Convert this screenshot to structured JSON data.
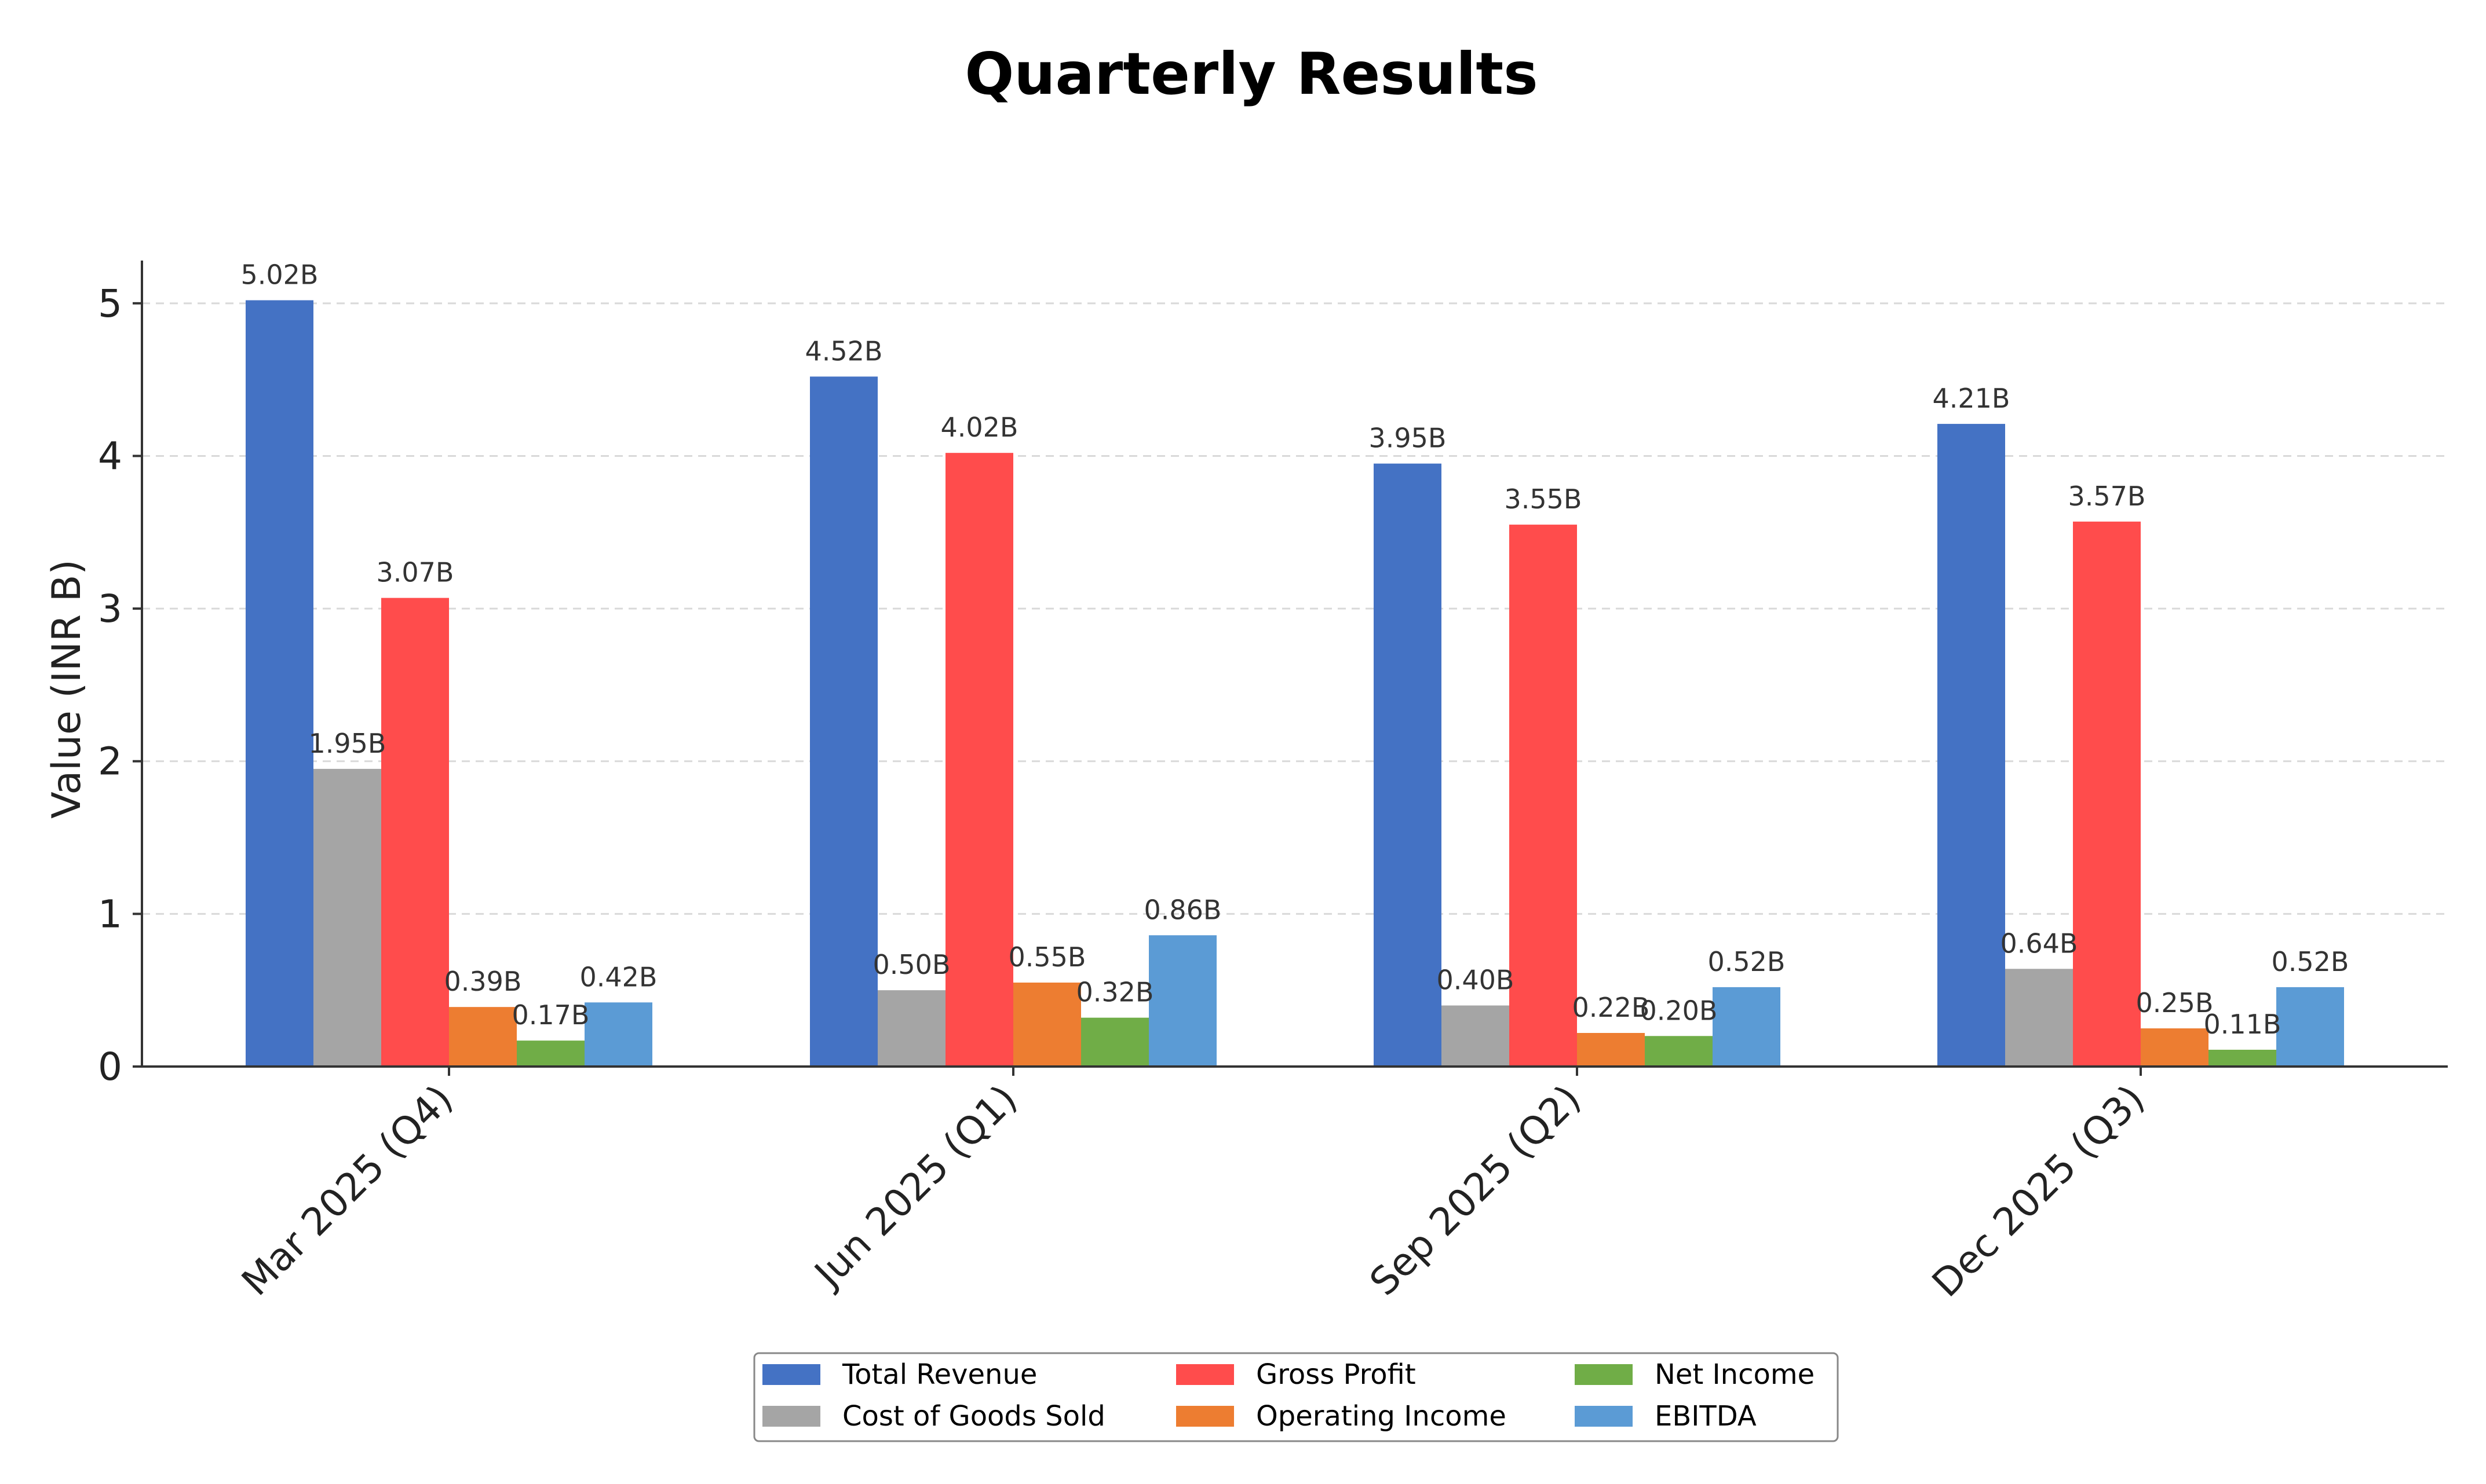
{
  "chart_data": {
    "type": "bar",
    "title": "Quarterly Results",
    "xlabel": "",
    "ylabel": "Value (INR B)",
    "ylim": [
      0,
      5.28
    ],
    "yticks": [
      0,
      1,
      2,
      3,
      4,
      5
    ],
    "grid": true,
    "legend_placement": "bottom-center",
    "categories": [
      "Mar 2025 (Q4)",
      "Jun 2025 (Q1)",
      "Sep 2025 (Q2)",
      "Dec 2025 (Q3)"
    ],
    "series": [
      {
        "name": "Total Revenue",
        "color": "#4472c4",
        "values": [
          5.02,
          4.52,
          3.95,
          4.21
        ],
        "labels": [
          "5.02B",
          "4.52B",
          "3.95B",
          "4.21B"
        ]
      },
      {
        "name": "Cost of Goods Sold",
        "color": "#a5a5a5",
        "values": [
          1.95,
          0.5,
          0.4,
          0.64
        ],
        "labels": [
          "1.95B",
          "0.50B",
          "0.40B",
          "0.64B"
        ]
      },
      {
        "name": "Gross Profit",
        "color": "#ff4c4c",
        "values": [
          3.07,
          4.02,
          3.55,
          3.57
        ],
        "labels": [
          "3.07B",
          "4.02B",
          "3.55B",
          "3.57B"
        ]
      },
      {
        "name": "Operating Income",
        "color": "#ed7d31",
        "values": [
          0.39,
          0.55,
          0.22,
          0.25
        ],
        "labels": [
          "0.39B",
          "0.55B",
          "0.22B",
          "0.25B"
        ]
      },
      {
        "name": "Net Income",
        "color": "#70ad47",
        "values": [
          0.17,
          0.32,
          0.2,
          0.11
        ],
        "labels": [
          "0.17B",
          "0.32B",
          "0.20B",
          "0.11B"
        ]
      },
      {
        "name": "EBITDA",
        "color": "#5b9bd5",
        "values": [
          0.42,
          0.86,
          0.52,
          0.52
        ],
        "labels": [
          "0.42B",
          "0.86B",
          "0.52B",
          "0.52B"
        ]
      }
    ]
  }
}
